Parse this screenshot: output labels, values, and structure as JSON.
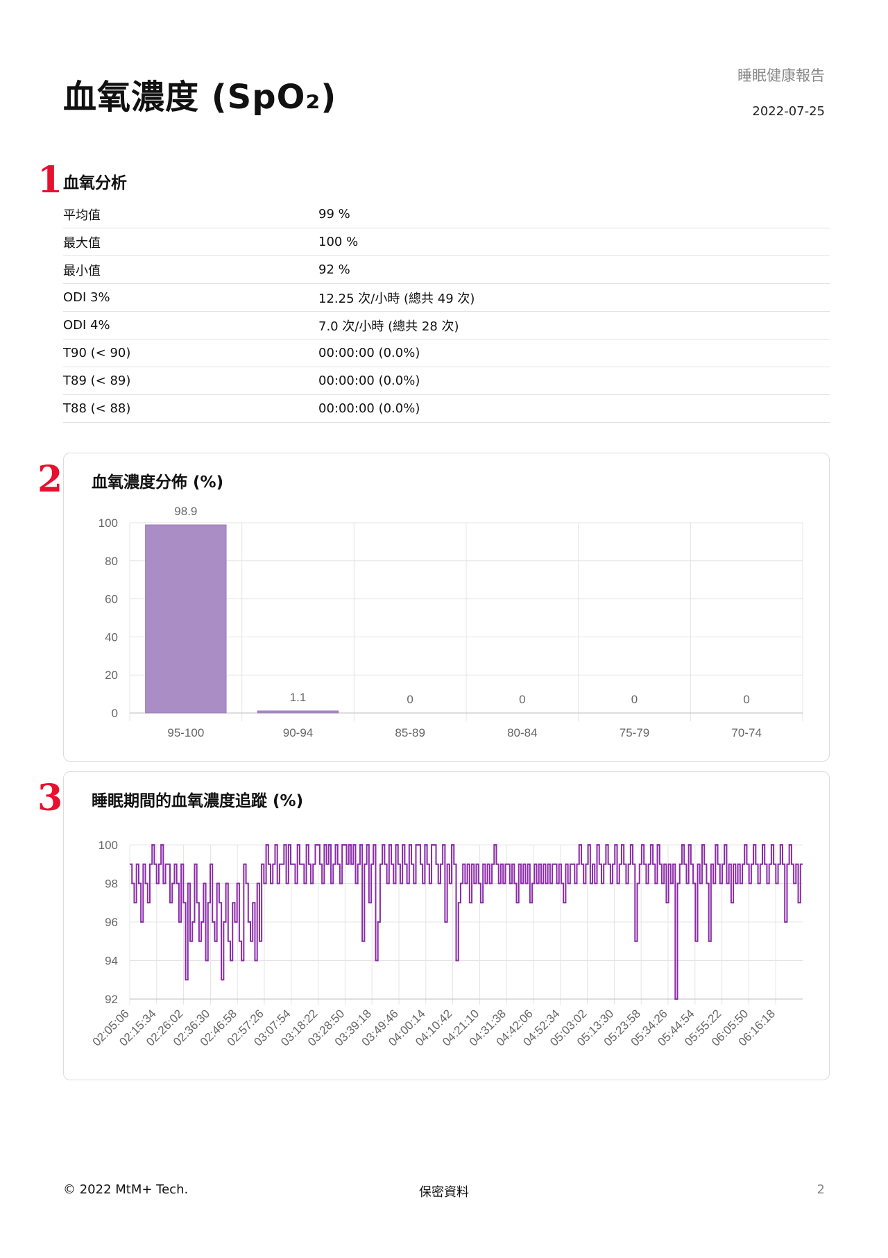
{
  "header": {
    "title": "血氧濃度 (SpO₂)",
    "report_name": "睡眠健康報告",
    "date": "2022-07-25"
  },
  "sections": {
    "markers": [
      "1",
      "2",
      "3"
    ],
    "analysis_title": "血氧分析"
  },
  "stats": [
    {
      "label": "平均值",
      "value": "99 %"
    },
    {
      "label": "最大值",
      "value": "100 %"
    },
    {
      "label": "最小值",
      "value": "92 %"
    },
    {
      "label": "ODI 3%",
      "value": "12.25 次/小時 (總共 49 次)"
    },
    {
      "label": "ODI 4%",
      "value": "7.0 次/小時 (總共 28 次)"
    },
    {
      "label": "T90 (< 90)",
      "value": "00:00:00 (0.0%)"
    },
    {
      "label": "T89 (< 89)",
      "value": "00:00:00 (0.0%)"
    },
    {
      "label": "T88 (< 88)",
      "value": "00:00:00 (0.0%)"
    }
  ],
  "chart_data": [
    {
      "type": "bar",
      "title": "血氧濃度分佈 (%)",
      "categories": [
        "95-100",
        "90-94",
        "85-89",
        "80-84",
        "75-79",
        "70-74"
      ],
      "values": [
        98.9,
        1.1,
        0,
        0,
        0,
        0
      ],
      "data_labels": [
        "98.9",
        "1.1",
        "0",
        "0",
        "0",
        "0"
      ],
      "ylim": [
        0,
        100
      ],
      "yticks": [
        0,
        20,
        40,
        60,
        80,
        100
      ],
      "grid": true,
      "color": "#a98dc4"
    },
    {
      "type": "line",
      "title": "睡眠期間的血氧濃度追蹤 (%)",
      "x_ticks": [
        "02:05:06",
        "02:15:34",
        "02:26:02",
        "02:36:30",
        "02:46:58",
        "02:57:26",
        "03:07:54",
        "03:18:22",
        "03:28:50",
        "03:39:18",
        "03:49:46",
        "04:00:14",
        "04:10:42",
        "04:21:10",
        "04:31:38",
        "04:42:06",
        "04:52:34",
        "05:03:02",
        "05:13:30",
        "05:23:58",
        "05:34:26",
        "05:44:54",
        "05:55:22",
        "06:05:50",
        "06:16:18"
      ],
      "ylim": [
        92,
        100
      ],
      "yticks": [
        92,
        94,
        96,
        98,
        100
      ],
      "grid": true,
      "color": "#8a2aa8",
      "y": [
        99,
        98,
        97,
        99,
        98,
        96,
        99,
        98,
        97,
        99,
        100,
        99,
        98,
        99,
        100,
        98,
        99,
        99,
        97,
        98,
        99,
        98,
        96,
        99,
        97,
        93,
        98,
        95,
        96,
        99,
        97,
        95,
        96,
        98,
        94,
        97,
        99,
        96,
        95,
        98,
        97,
        93,
        96,
        98,
        95,
        94,
        97,
        96,
        98,
        95,
        94,
        99,
        98,
        96,
        95,
        97,
        94,
        98,
        95,
        99,
        98,
        100,
        99,
        98,
        99,
        100,
        98,
        99,
        99,
        100,
        98,
        100,
        99,
        99,
        98,
        100,
        99,
        99,
        98,
        100,
        99,
        98,
        99,
        100,
        100,
        99,
        98,
        100,
        99,
        100,
        98,
        99,
        100,
        99,
        98,
        100,
        100,
        99,
        100,
        99,
        100,
        98,
        99,
        100,
        95,
        99,
        100,
        97,
        99,
        100,
        94,
        96,
        99,
        100,
        99,
        98,
        100,
        99,
        98,
        100,
        99,
        98,
        100,
        99,
        98,
        100,
        99,
        98,
        100,
        100,
        99,
        98,
        100,
        99,
        98,
        100,
        100,
        99,
        98,
        99,
        100,
        96,
        99,
        98,
        100,
        99,
        94,
        97,
        98,
        99,
        98,
        99,
        97,
        99,
        98,
        99,
        98,
        97,
        99,
        98,
        99,
        98,
        99,
        100,
        99,
        98,
        99,
        98,
        99,
        99,
        98,
        99,
        98,
        97,
        99,
        98,
        99,
        98,
        99,
        97,
        98,
        99,
        98,
        99,
        98,
        99,
        98,
        99,
        98,
        99,
        99,
        98,
        99,
        98,
        97,
        99,
        98,
        99,
        99,
        98,
        99,
        100,
        99,
        98,
        99,
        100,
        98,
        99,
        98,
        100,
        99,
        98,
        99,
        100,
        99,
        98,
        99,
        100,
        98,
        99,
        100,
        99,
        98,
        99,
        100,
        99,
        95,
        98,
        99,
        100,
        99,
        98,
        99,
        100,
        99,
        98,
        100,
        99,
        98,
        99,
        97,
        99,
        98,
        99,
        92,
        98,
        99,
        100,
        99,
        98,
        100,
        99,
        98,
        95,
        99,
        98,
        100,
        99,
        98,
        95,
        99,
        98,
        100,
        99,
        98,
        99,
        100,
        98,
        99,
        97,
        99,
        98,
        99,
        98,
        99,
        100,
        99,
        98,
        99,
        100,
        99,
        98,
        99,
        100,
        99,
        98,
        99,
        100,
        99,
        98,
        99,
        100,
        99,
        96,
        99,
        100,
        99,
        98,
        99,
        97,
        99
      ]
    }
  ],
  "footer": {
    "copyright": "© 2022 MtM+ Tech.",
    "confidential": "保密資料",
    "page": "2"
  }
}
